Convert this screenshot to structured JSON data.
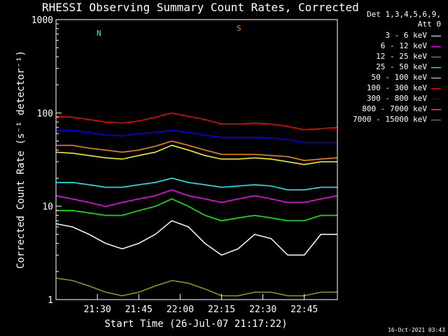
{
  "chart_data": {
    "type": "line",
    "title": "RHESSI Observing Summary Count Rates, Corrected",
    "xlabel": "Start Time (26-Jul-07 21:17:22)",
    "ylabel": "Corrected Count Rate (s^-1 detector^-1)",
    "y_scale": "log",
    "ylim": [
      1,
      1000
    ],
    "x_range_minutes": [
      21.25,
      22.95
    ],
    "x_tick_labels": [
      "21:30",
      "21:45",
      "22:00",
      "22:15",
      "22:30",
      "22:45"
    ],
    "y_tick_labels": [
      "1",
      "10",
      "100",
      "1000"
    ],
    "legend_header": [
      "Det 1,3,4,5,6,9,",
      "Att 0"
    ],
    "series": [
      {
        "name": "3 - 6 keV",
        "color": "#ffffff",
        "values": [
          6.5,
          6,
          5,
          4,
          3.5,
          4,
          5,
          7,
          6,
          4,
          3,
          3.5,
          5,
          4.5,
          3,
          3,
          5,
          5
        ]
      },
      {
        "name": "6 - 12 keV",
        "color": "#ff00ff",
        "values": [
          13,
          12,
          11,
          10,
          11,
          12,
          13,
          15,
          13,
          12,
          11,
          12,
          13,
          12,
          11,
          11,
          12,
          13
        ]
      },
      {
        "name": "12 - 25 keV",
        "color": "#00ff00",
        "values": [
          9,
          9,
          8.5,
          8,
          8,
          9,
          10,
          12,
          10,
          8,
          7,
          7.5,
          8,
          7.5,
          7,
          7,
          8,
          8
        ]
      },
      {
        "name": "25 - 50 keV",
        "color": "#00ffff",
        "values": [
          18,
          18,
          17,
          16,
          16,
          17,
          18,
          20,
          18,
          17,
          16,
          16.5,
          17,
          16.5,
          15,
          15,
          16,
          16
        ]
      },
      {
        "name": "50 - 100 keV",
        "color": "#ffff00",
        "values": [
          38,
          37,
          35,
          33,
          32,
          35,
          38,
          45,
          40,
          35,
          32,
          32,
          33,
          32,
          30,
          28,
          30,
          30
        ]
      },
      {
        "name": "100 - 300 keV",
        "color": "#ff0000",
        "values": [
          92,
          90,
          85,
          80,
          78,
          82,
          90,
          100,
          92,
          85,
          76,
          76,
          78,
          76,
          72,
          66,
          68,
          70
        ]
      },
      {
        "name": "300 - 800 keV",
        "color": "#0000ff",
        "values": [
          65,
          65,
          62,
          58,
          57,
          60,
          62,
          65,
          62,
          58,
          55,
          55,
          55,
          54,
          52,
          48,
          48,
          48
        ]
      },
      {
        "name": "800 - 7000 keV",
        "color": "#ff8c00",
        "values": [
          45,
          45,
          42,
          40,
          38,
          40,
          44,
          50,
          45,
          40,
          36,
          36,
          36,
          35,
          34,
          31,
          32,
          33
        ]
      },
      {
        "name": "7000 - 15000 keV",
        "color": "#999900",
        "values": [
          1.7,
          1.6,
          1.4,
          1.2,
          1.1,
          1.2,
          1.4,
          1.6,
          1.5,
          1.3,
          1.1,
          1.1,
          1.2,
          1.2,
          1.1,
          1.1,
          1.2,
          1.2
        ]
      }
    ],
    "x_sample_minutes": [
      21.25,
      21.35,
      21.45,
      21.55,
      21.65,
      21.75,
      21.85,
      21.95,
      22.05,
      22.15,
      22.25,
      22.35,
      22.45,
      22.55,
      22.65,
      22.75,
      22.85,
      22.95
    ],
    "annotations": {
      "night_label": "N",
      "saa_label": "S"
    }
  },
  "footer": {
    "timestamp": "16-Oct-2021 03:43"
  }
}
